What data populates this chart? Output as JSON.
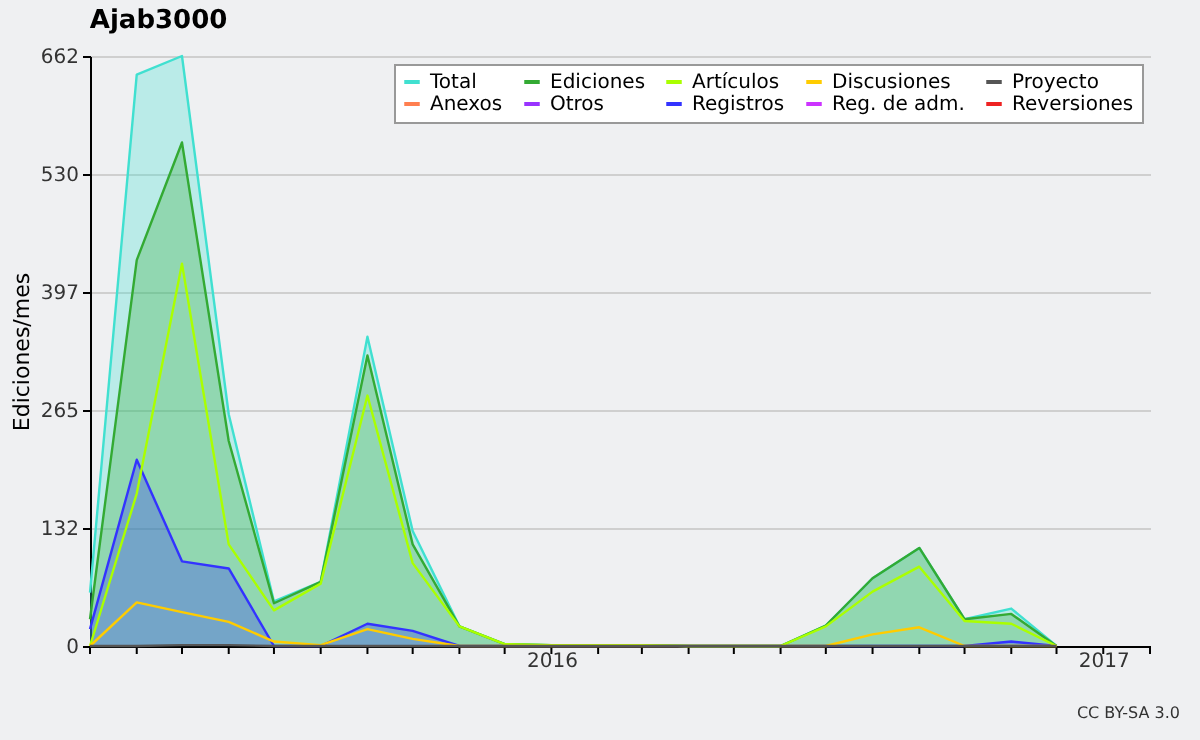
{
  "chart_data": {
    "type": "line",
    "title": "Ajab3000",
    "ylabel": "Ediciones/mes",
    "x": [
      "2015-03",
      "2015-04",
      "2015-05",
      "2015-06",
      "2015-07",
      "2015-08",
      "2015-09",
      "2015-10",
      "2015-11",
      "2015-12",
      "2016-01",
      "2016-02",
      "2016-03",
      "2016-04",
      "2016-05",
      "2016-06",
      "2016-07",
      "2016-08",
      "2016-09",
      "2016-10",
      "2016-11",
      "2016-12"
    ],
    "series": [
      {
        "name": "Total",
        "type": "area",
        "color": "#40e0d0",
        "values": [
          60,
          641,
          662,
          260,
          50,
          72,
          347,
          129,
          22,
          2,
          1,
          1,
          1,
          0,
          0,
          0,
          23,
          76,
          110,
          30,
          42,
          0
        ]
      },
      {
        "name": "Ediciones",
        "type": "area",
        "color": "#33aa33",
        "values": [
          30,
          433,
          565,
          230,
          48,
          72,
          326,
          114,
          22,
          2,
          1,
          1,
          1,
          0,
          0,
          0,
          23,
          76,
          110,
          30,
          36,
          0
        ]
      },
      {
        "name": "Artículos",
        "type": "line",
        "color": "#aaff00",
        "values": [
          0,
          171,
          429,
          114,
          40,
          70,
          281,
          93,
          22,
          2,
          1,
          1,
          1,
          0,
          0,
          0,
          22,
          61,
          89,
          28,
          25,
          0
        ]
      },
      {
        "name": "Discusiones",
        "type": "line",
        "color": "#ffcc00",
        "values": [
          0,
          49,
          38,
          27,
          5,
          1,
          19,
          8,
          0,
          0,
          0,
          0,
          0,
          0,
          0,
          0,
          0,
          13,
          21,
          0,
          0,
          0
        ]
      },
      {
        "name": "Proyecto",
        "type": "line",
        "color": "#555555",
        "values": [
          0,
          0,
          1,
          1,
          0,
          0,
          0,
          0,
          0,
          0,
          0,
          0,
          0,
          0,
          0,
          0,
          0,
          0,
          0,
          0,
          0,
          0
        ]
      },
      {
        "name": "Anexos",
        "type": "line",
        "color": "#ff7f50",
        "values": [
          null,
          null,
          null,
          null,
          null,
          null,
          null,
          null,
          null,
          null,
          null,
          null,
          null,
          null,
          null,
          null,
          null,
          null,
          null,
          null,
          null,
          null
        ]
      },
      {
        "name": "Otros",
        "type": "line",
        "color": "#9933ff",
        "values": [
          null,
          null,
          null,
          null,
          null,
          null,
          null,
          null,
          null,
          null,
          null,
          null,
          null,
          null,
          null,
          null,
          null,
          null,
          null,
          null,
          null,
          null
        ]
      },
      {
        "name": "Registros",
        "type": "area",
        "color": "#3333ff",
        "values": [
          19,
          209,
          95,
          87,
          0,
          0,
          25,
          17,
          0,
          0,
          0,
          0,
          0,
          0,
          0,
          0,
          0,
          0,
          0,
          0,
          5,
          0
        ]
      },
      {
        "name": "Reg. de adm.",
        "type": "line",
        "color": "#cc33ff",
        "values": [
          null,
          null,
          null,
          null,
          null,
          null,
          null,
          null,
          null,
          null,
          null,
          null,
          null,
          null,
          null,
          null,
          null,
          null,
          null,
          null,
          null,
          null
        ]
      },
      {
        "name": "Reversiones",
        "type": "line",
        "color": "#ee2222",
        "values": [
          null,
          null,
          null,
          null,
          null,
          null,
          null,
          null,
          null,
          null,
          null,
          null,
          null,
          null,
          null,
          null,
          null,
          null,
          null,
          null,
          null,
          null
        ]
      }
    ],
    "xlim": [
      "2015-03",
      "2017-02"
    ],
    "xticks": [
      {
        "value": "2015-03",
        "label": null
      },
      {
        "value": "2015-04",
        "label": null
      },
      {
        "value": "2015-05",
        "label": null
      },
      {
        "value": "2015-06",
        "label": null
      },
      {
        "value": "2015-07",
        "label": null
      },
      {
        "value": "2015-08",
        "label": null
      },
      {
        "value": "2015-09",
        "label": null
      },
      {
        "value": "2015-10",
        "label": null
      },
      {
        "value": "2015-11",
        "label": null
      },
      {
        "value": "2015-12",
        "label": null
      },
      {
        "value": "2016-01",
        "label": "2016"
      },
      {
        "value": "2016-02",
        "label": null
      },
      {
        "value": "2016-03",
        "label": null
      },
      {
        "value": "2016-04",
        "label": null
      },
      {
        "value": "2016-05",
        "label": null
      },
      {
        "value": "2016-06",
        "label": null
      },
      {
        "value": "2016-07",
        "label": null
      },
      {
        "value": "2016-08",
        "label": null
      },
      {
        "value": "2016-09",
        "label": null
      },
      {
        "value": "2016-10",
        "label": null
      },
      {
        "value": "2016-11",
        "label": null
      },
      {
        "value": "2016-12",
        "label": null
      },
      {
        "value": "2017-01",
        "label": "2017"
      },
      {
        "value": "2017-02",
        "label": null
      }
    ],
    "ylim": [
      0,
      662
    ],
    "yticks": [
      0,
      132,
      265,
      397,
      530,
      662
    ],
    "grid": "y",
    "legend": "top right",
    "annotations": [
      "CC BY-SA 3.0"
    ]
  }
}
